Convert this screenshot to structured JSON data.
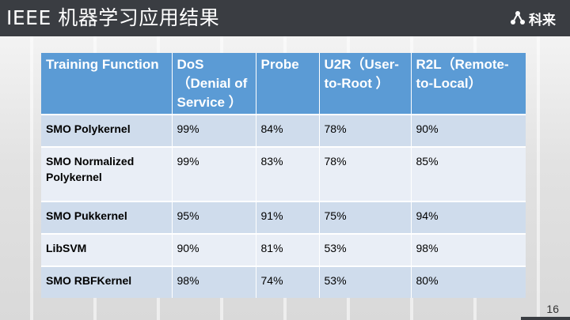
{
  "header": {
    "title": "IEEE 机器学习应用结果",
    "brand": "科来"
  },
  "table": {
    "columns": [
      "Training Function",
      "DoS （Denial of Service ）",
      "Probe",
      "U2R（User-to-Root ）",
      "R2L（Remote-to-Local）"
    ],
    "rows": [
      [
        "SMO Polykernel",
        "99%",
        "84%",
        "78%",
        "90%"
      ],
      [
        "SMO Normalized Polykernel",
        "99%",
        "83%",
        "78%",
        "85%"
      ],
      [
        "SMO Pukkernel",
        "95%",
        "91%",
        "75%",
        "94%"
      ],
      [
        "LibSVM",
        "90%",
        "81%",
        "53%",
        "98%"
      ],
      [
        "SMO RBFKernel",
        "98%",
        "74%",
        "53%",
        "80%"
      ]
    ]
  },
  "footer": {
    "page_number": "16"
  },
  "colors": {
    "header_bg": "#3a3d42",
    "table_header": "#5b9bd5",
    "row_odd": "#cfdcec",
    "row_even": "#e9eef6"
  }
}
